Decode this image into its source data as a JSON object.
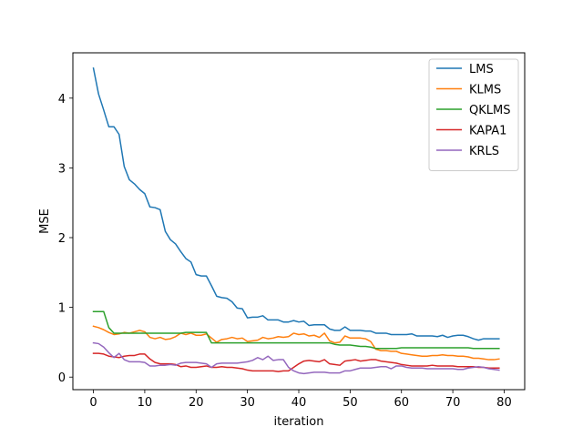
{
  "chart_data": {
    "type": "line",
    "title": "",
    "xlabel": "iteration",
    "ylabel": "MSE",
    "xlim": [
      -4,
      84
    ],
    "ylim": [
      -0.18,
      4.65
    ],
    "xticks": [
      0,
      10,
      20,
      30,
      40,
      50,
      60,
      70,
      80
    ],
    "yticks": [
      0,
      1,
      2,
      3,
      4
    ],
    "grid": false,
    "legend_position": "top-right",
    "series": [
      {
        "name": "LMS",
        "color": "#1f77b4",
        "values": [
          4.43,
          4.06,
          3.83,
          3.59,
          3.59,
          3.48,
          3.02,
          2.83,
          2.77,
          2.69,
          2.63,
          2.44,
          2.43,
          2.4,
          2.09,
          1.97,
          1.91,
          1.8,
          1.7,
          1.65,
          1.47,
          1.45,
          1.45,
          1.31,
          1.16,
          1.14,
          1.13,
          1.08,
          0.99,
          0.98,
          0.85,
          0.86,
          0.86,
          0.88,
          0.82,
          0.82,
          0.82,
          0.79,
          0.79,
          0.81,
          0.79,
          0.8,
          0.74,
          0.75,
          0.75,
          0.75,
          0.69,
          0.67,
          0.67,
          0.72,
          0.67,
          0.67,
          0.67,
          0.66,
          0.66,
          0.63,
          0.63,
          0.63,
          0.61,
          0.61,
          0.61,
          0.61,
          0.62,
          0.59,
          0.59,
          0.59,
          0.59,
          0.58,
          0.6,
          0.57,
          0.59,
          0.6,
          0.6,
          0.58,
          0.55,
          0.53,
          0.55,
          0.55,
          0.55,
          0.55
        ]
      },
      {
        "name": "KLMS",
        "color": "#ff7f0e",
        "values": [
          0.73,
          0.71,
          0.68,
          0.64,
          0.61,
          0.62,
          0.64,
          0.63,
          0.65,
          0.67,
          0.65,
          0.57,
          0.55,
          0.57,
          0.54,
          0.55,
          0.58,
          0.63,
          0.61,
          0.63,
          0.6,
          0.6,
          0.62,
          0.56,
          0.5,
          0.54,
          0.55,
          0.57,
          0.55,
          0.56,
          0.51,
          0.52,
          0.53,
          0.57,
          0.55,
          0.56,
          0.58,
          0.57,
          0.58,
          0.63,
          0.61,
          0.62,
          0.59,
          0.6,
          0.57,
          0.63,
          0.52,
          0.49,
          0.5,
          0.59,
          0.56,
          0.56,
          0.56,
          0.55,
          0.51,
          0.4,
          0.38,
          0.38,
          0.37,
          0.37,
          0.34,
          0.33,
          0.32,
          0.31,
          0.3,
          0.3,
          0.31,
          0.31,
          0.32,
          0.31,
          0.31,
          0.3,
          0.3,
          0.29,
          0.27,
          0.27,
          0.26,
          0.25,
          0.25,
          0.26
        ]
      },
      {
        "name": "QKLMS",
        "color": "#2ca02c",
        "values": [
          0.94,
          0.94,
          0.94,
          0.71,
          0.63,
          0.63,
          0.63,
          0.63,
          0.63,
          0.63,
          0.63,
          0.63,
          0.63,
          0.63,
          0.63,
          0.63,
          0.63,
          0.63,
          0.64,
          0.64,
          0.64,
          0.64,
          0.64,
          0.49,
          0.49,
          0.49,
          0.49,
          0.49,
          0.49,
          0.49,
          0.49,
          0.49,
          0.49,
          0.49,
          0.49,
          0.49,
          0.49,
          0.49,
          0.49,
          0.49,
          0.49,
          0.49,
          0.49,
          0.49,
          0.49,
          0.49,
          0.49,
          0.47,
          0.46,
          0.46,
          0.46,
          0.45,
          0.44,
          0.44,
          0.43,
          0.41,
          0.41,
          0.41,
          0.41,
          0.41,
          0.42,
          0.42,
          0.42,
          0.42,
          0.42,
          0.42,
          0.42,
          0.42,
          0.42,
          0.42,
          0.42,
          0.42,
          0.42,
          0.42,
          0.41,
          0.41,
          0.41,
          0.41,
          0.41,
          0.41
        ]
      },
      {
        "name": "KAPA1",
        "color": "#d62728",
        "values": [
          0.34,
          0.34,
          0.33,
          0.3,
          0.29,
          0.28,
          0.3,
          0.31,
          0.31,
          0.33,
          0.33,
          0.26,
          0.21,
          0.19,
          0.19,
          0.19,
          0.18,
          0.15,
          0.16,
          0.14,
          0.14,
          0.15,
          0.16,
          0.14,
          0.14,
          0.15,
          0.14,
          0.14,
          0.13,
          0.12,
          0.1,
          0.09,
          0.09,
          0.09,
          0.09,
          0.09,
          0.08,
          0.09,
          0.09,
          0.14,
          0.19,
          0.23,
          0.24,
          0.23,
          0.22,
          0.25,
          0.19,
          0.18,
          0.17,
          0.23,
          0.24,
          0.25,
          0.23,
          0.24,
          0.25,
          0.25,
          0.23,
          0.22,
          0.21,
          0.2,
          0.18,
          0.17,
          0.16,
          0.16,
          0.16,
          0.16,
          0.17,
          0.16,
          0.16,
          0.16,
          0.16,
          0.15,
          0.15,
          0.15,
          0.15,
          0.14,
          0.14,
          0.13,
          0.13,
          0.13
        ]
      },
      {
        "name": "KRLS",
        "color": "#9467bd",
        "values": [
          0.49,
          0.48,
          0.43,
          0.35,
          0.28,
          0.34,
          0.25,
          0.22,
          0.22,
          0.22,
          0.21,
          0.16,
          0.16,
          0.17,
          0.17,
          0.18,
          0.17,
          0.2,
          0.21,
          0.21,
          0.21,
          0.2,
          0.19,
          0.14,
          0.19,
          0.2,
          0.2,
          0.2,
          0.2,
          0.21,
          0.22,
          0.24,
          0.28,
          0.25,
          0.3,
          0.24,
          0.25,
          0.25,
          0.14,
          0.09,
          0.06,
          0.05,
          0.06,
          0.07,
          0.07,
          0.07,
          0.06,
          0.06,
          0.06,
          0.09,
          0.09,
          0.11,
          0.13,
          0.13,
          0.13,
          0.14,
          0.15,
          0.15,
          0.12,
          0.16,
          0.16,
          0.14,
          0.13,
          0.13,
          0.13,
          0.12,
          0.12,
          0.12,
          0.12,
          0.12,
          0.12,
          0.11,
          0.11,
          0.13,
          0.14,
          0.15,
          0.14,
          0.12,
          0.11,
          0.1
        ]
      }
    ]
  }
}
